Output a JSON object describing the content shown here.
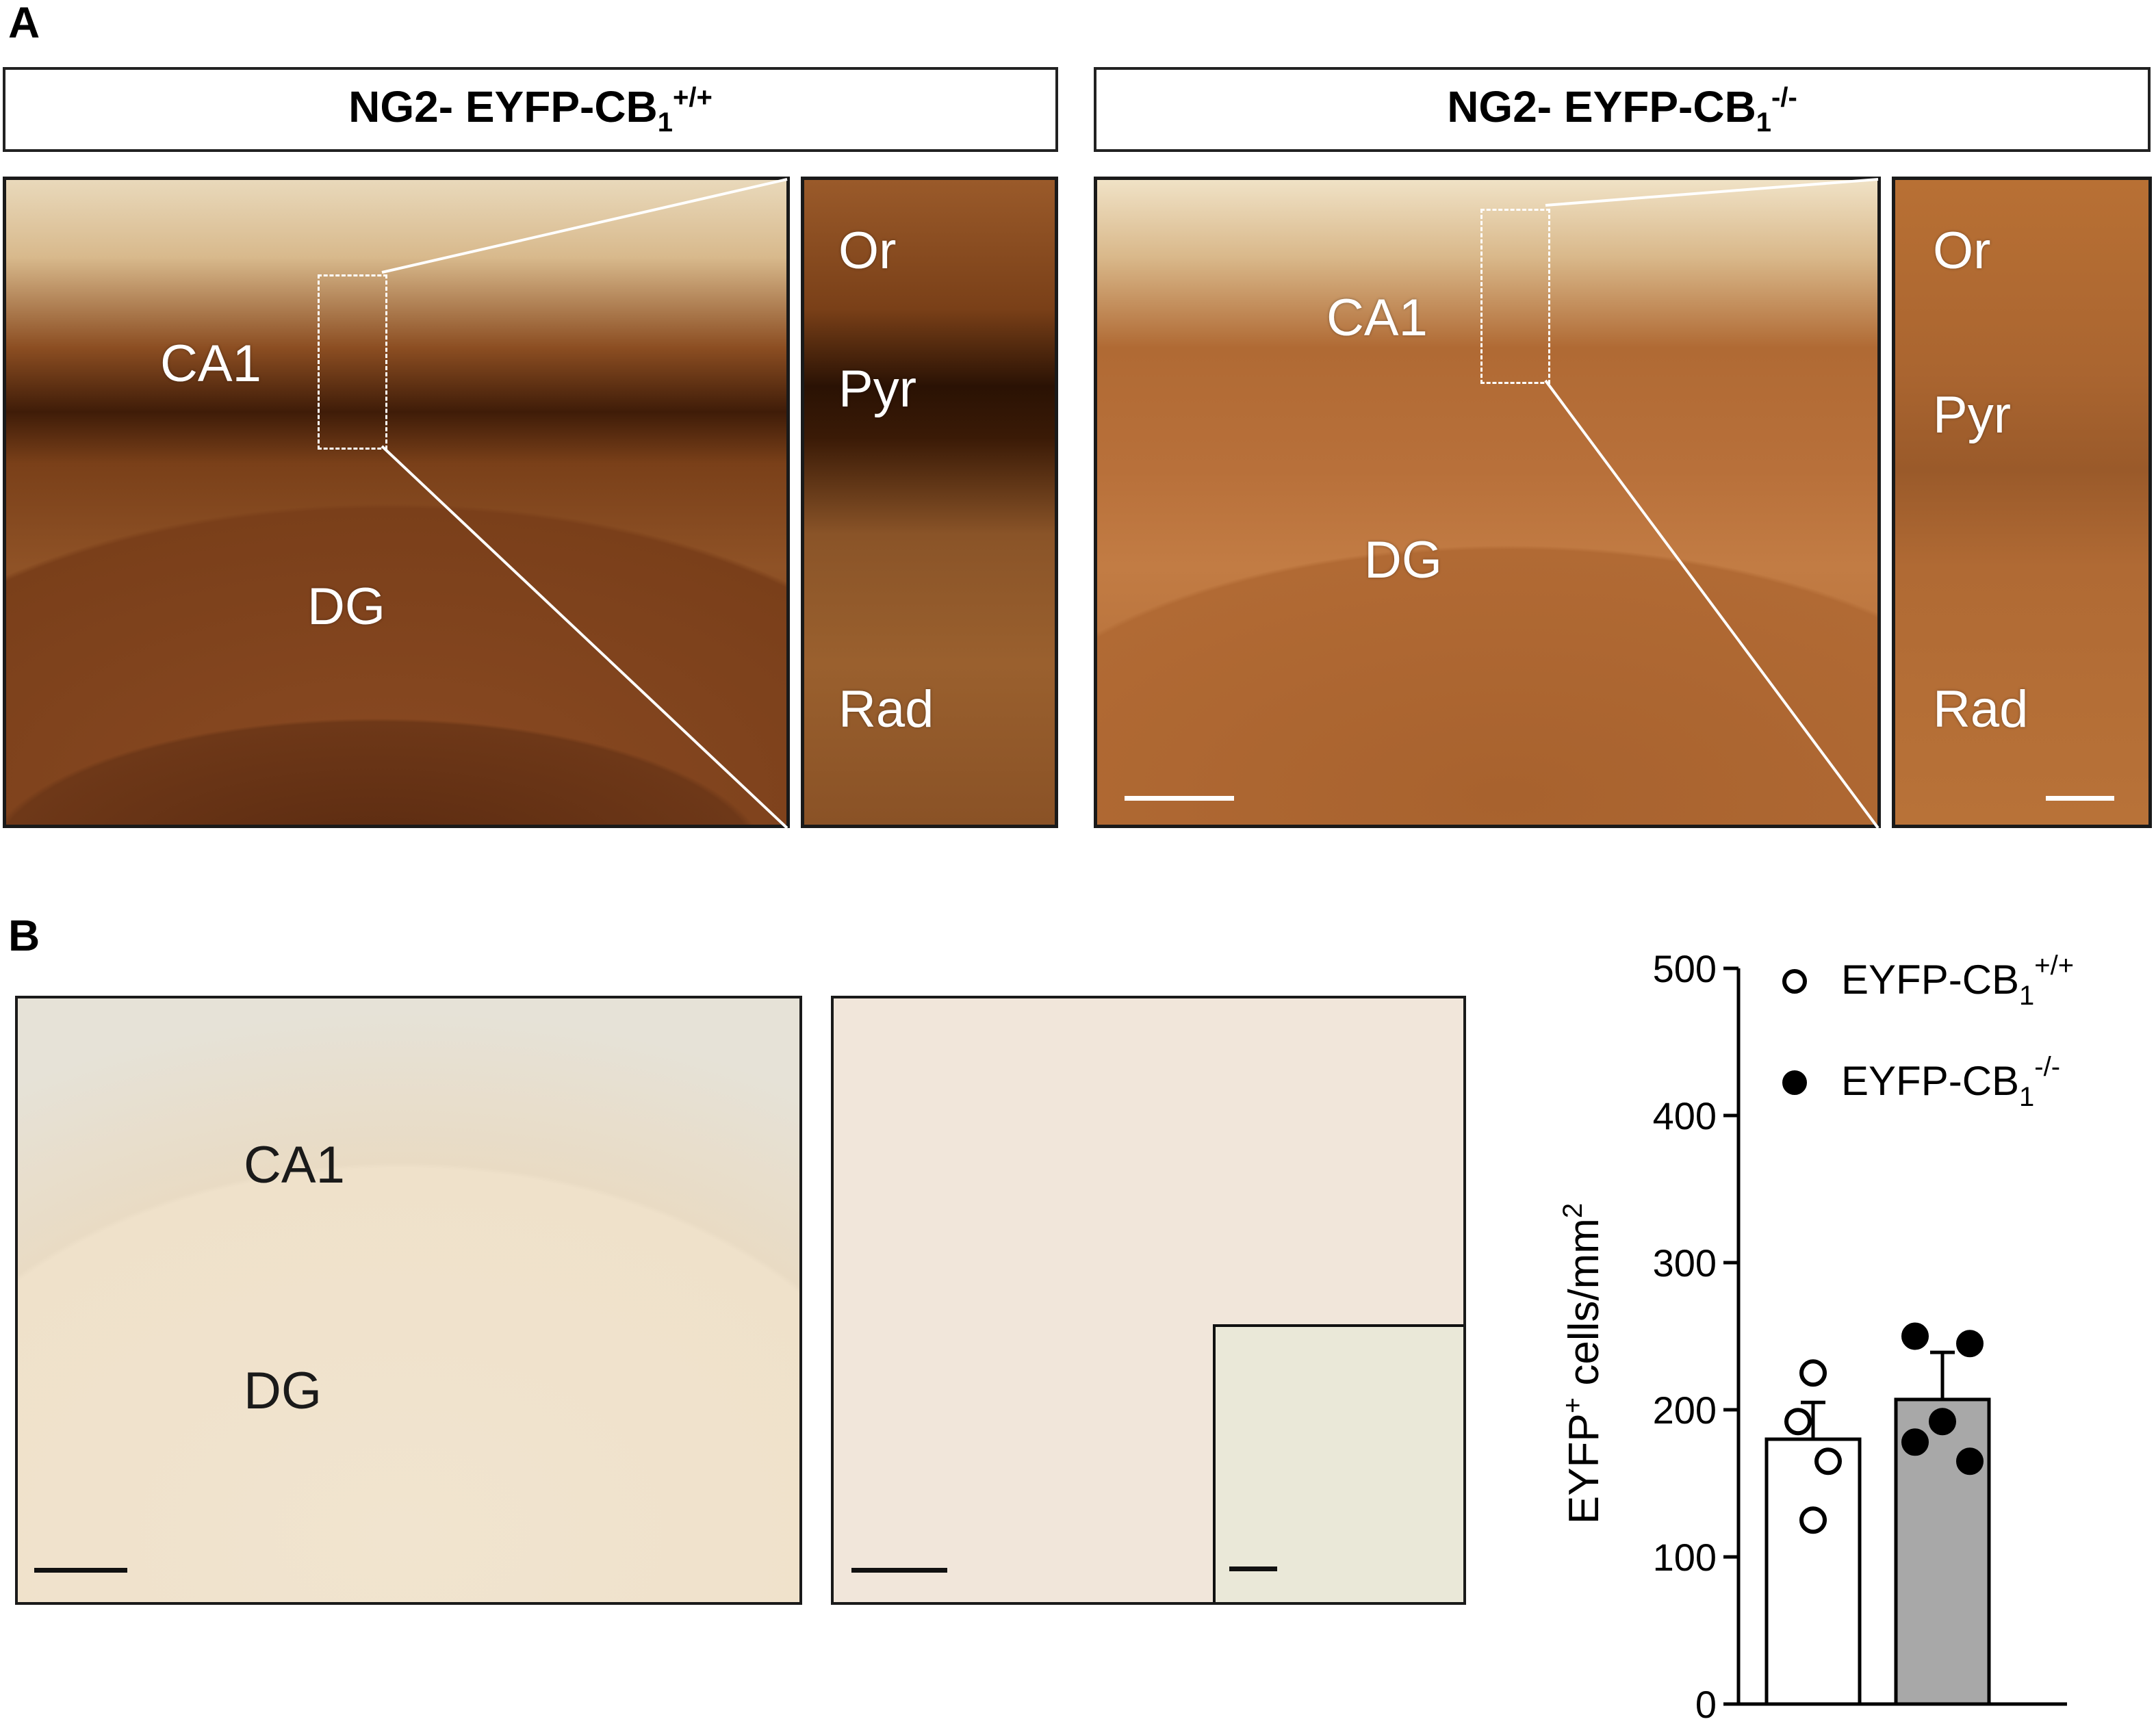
{
  "panel_a": {
    "letter": "A",
    "left_title": {
      "prefix": "NG2- EYFP-CB",
      "sub": "1",
      "sup": "+/+"
    },
    "right_title": {
      "prefix": "NG2- EYFP-CB",
      "sub": "1",
      "sup": "-/-"
    },
    "labels": {
      "ca1": "CA1",
      "dg": "DG",
      "or": "Or",
      "pyr": "Pyr",
      "rad": "Rad"
    }
  },
  "panel_b": {
    "letter": "B",
    "labels": {
      "ca1": "CA1",
      "dg": "DG"
    }
  },
  "chart_data": {
    "type": "bar",
    "ylabel": "EYFP",
    "ylabel_sup": "+",
    "ylabel_rest": " cells/mm",
    "ylabel_sup2": "2",
    "ylim": [
      0,
      500
    ],
    "yticks": [
      "0",
      "100",
      "200",
      "300",
      "400",
      "500"
    ],
    "legend": [
      {
        "name": "EYFP-CB",
        "sub": "1",
        "sup": "+/+",
        "marker": "open-circle"
      },
      {
        "name": "EYFP-CB",
        "sub": "1",
        "sup": "-/-",
        "marker": "filled-circle"
      }
    ],
    "legend_position": "top-right",
    "series": [
      {
        "name": "EYFP-CB1+/+",
        "mean": 180,
        "sem": 25,
        "points": [
          225,
          192,
          165,
          125
        ],
        "bar_color": "#ffffff",
        "point_fill": "#ffffff"
      },
      {
        "name": "EYFP-CB1-/-",
        "mean": 207,
        "sem": 32,
        "points": [
          250,
          245,
          192,
          178,
          165
        ],
        "bar_color": "#a8a8a8",
        "point_fill": "#000000"
      }
    ]
  }
}
